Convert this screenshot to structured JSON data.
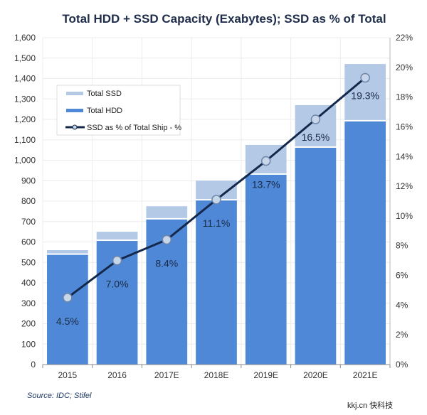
{
  "chart_data": {
    "type": "bar",
    "stacked": true,
    "title": "Total  HDD + SSD Capacity (Exabytes); SSD as % of Total",
    "categories": [
      "2015",
      "2016",
      "2017E",
      "2018E",
      "2019E",
      "2020E",
      "2021E"
    ],
    "series": [
      {
        "name": "Total HDD",
        "type": "bar",
        "axis": "left",
        "color": "#4f88d6",
        "values": [
          537,
          605,
          710,
          803,
          929,
          1061,
          1190
        ]
      },
      {
        "name": "Total SSD",
        "type": "bar",
        "axis": "left",
        "color": "#b3c9e6",
        "values": [
          23,
          45,
          65,
          97,
          146,
          209,
          281
        ]
      },
      {
        "name": "SSD as % of Total Ship - %",
        "type": "line",
        "axis": "right",
        "color": "#14284b",
        "values": [
          4.5,
          7.0,
          8.4,
          11.1,
          13.7,
          16.5,
          19.3
        ]
      }
    ],
    "data_labels": [
      "4.5%",
      "7.0%",
      "8.4%",
      "11.1%",
      "13.7%",
      "16.5%",
      "19.3%"
    ],
    "y_left": {
      "range": [
        0,
        1600
      ],
      "ticks": [
        "0",
        "100",
        "200",
        "300",
        "400",
        "500",
        "600",
        "700",
        "800",
        "900",
        "1,000",
        "1,100",
        "1,200",
        "1,300",
        "1,400",
        "1,500",
        "1,600"
      ]
    },
    "y_right": {
      "range": [
        0,
        22
      ],
      "ticks": [
        "0%",
        "2%",
        "4%",
        "6%",
        "8%",
        "10%",
        "12%",
        "14%",
        "16%",
        "18%",
        "20%",
        "22%"
      ]
    },
    "grid": true,
    "legend_position": "top-left"
  },
  "source": "Source: IDC; Stifel",
  "watermark": "kkj.cn 快科技"
}
